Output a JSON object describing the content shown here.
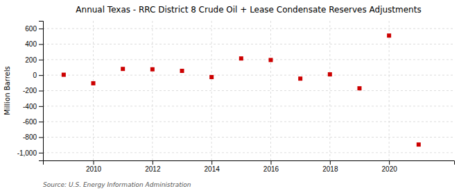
{
  "chart_data": {
    "type": "scatter",
    "title": "Annual Texas - RRC District 8 Crude Oil + Lease Condensate Reserves Adjustments",
    "y_label": "Million Barrels",
    "source": "Source: U.S. Energy Information Administration",
    "x": [
      2009,
      2010,
      2011,
      2012,
      2013,
      2014,
      2015,
      2016,
      2017,
      2018,
      2019,
      2020,
      2021
    ],
    "values": [
      5,
      -105,
      80,
      75,
      55,
      -25,
      215,
      195,
      -45,
      10,
      -170,
      510,
      -895
    ],
    "color": "#CC0000",
    "marker": "square",
    "xlim": [
      2008.3,
      2022.2
    ],
    "xticks": [
      2010,
      2012,
      2014,
      2016,
      2018,
      2020
    ],
    "ylim": [
      -1100,
      700
    ],
    "yticks": [
      {
        "value": -1000,
        "label": "-1,000"
      },
      -800,
      -600,
      -400,
      -200,
      0,
      200,
      400,
      600
    ],
    "grid": true
  }
}
